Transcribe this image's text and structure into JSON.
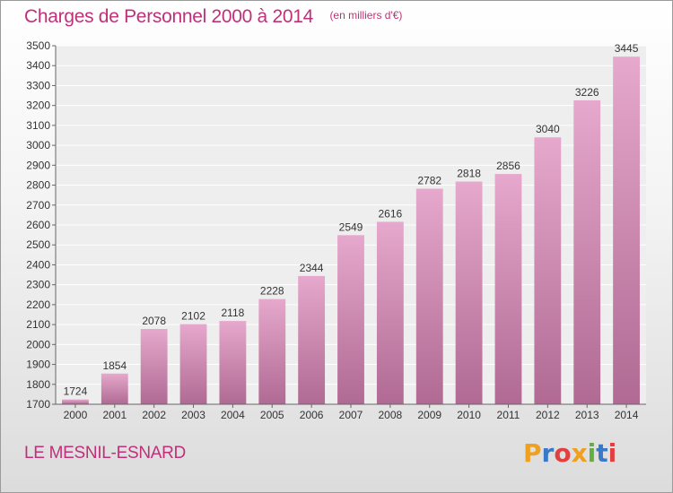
{
  "header": {
    "title": "Charges de Personnel 2000 à 2014",
    "subtitle": "(en milliers d'€)"
  },
  "footer": {
    "commune": "LE MESNIL-ESNARD",
    "brand": "Proxiti"
  },
  "colors": {
    "title": "#c0307a",
    "bar_top": "#e6a8cc",
    "bar_bottom": "#b06a93",
    "brand_letters": [
      "#f0a020",
      "#3a78c8",
      "#e04040",
      "#f0a020",
      "#60b040",
      "#3a78c8",
      "#e04040"
    ]
  },
  "chart_data": {
    "type": "bar",
    "title": "Charges de Personnel 2000 à 2014",
    "subtitle": "(en milliers d'€)",
    "xlabel": "",
    "ylabel": "",
    "categories": [
      "2000",
      "2001",
      "2002",
      "2003",
      "2004",
      "2005",
      "2006",
      "2007",
      "2008",
      "2009",
      "2010",
      "2011",
      "2012",
      "2013",
      "2014"
    ],
    "values": [
      1724,
      1854,
      2078,
      2102,
      2118,
      2228,
      2344,
      2549,
      2616,
      2782,
      2818,
      2856,
      3040,
      3226,
      3445
    ],
    "ylim": [
      1700,
      3500
    ],
    "yticks": [
      1700,
      1800,
      1900,
      2000,
      2100,
      2200,
      2300,
      2400,
      2500,
      2600,
      2700,
      2800,
      2900,
      3000,
      3100,
      3200,
      3300,
      3400,
      3500
    ],
    "grid": true,
    "data_labels": true
  }
}
